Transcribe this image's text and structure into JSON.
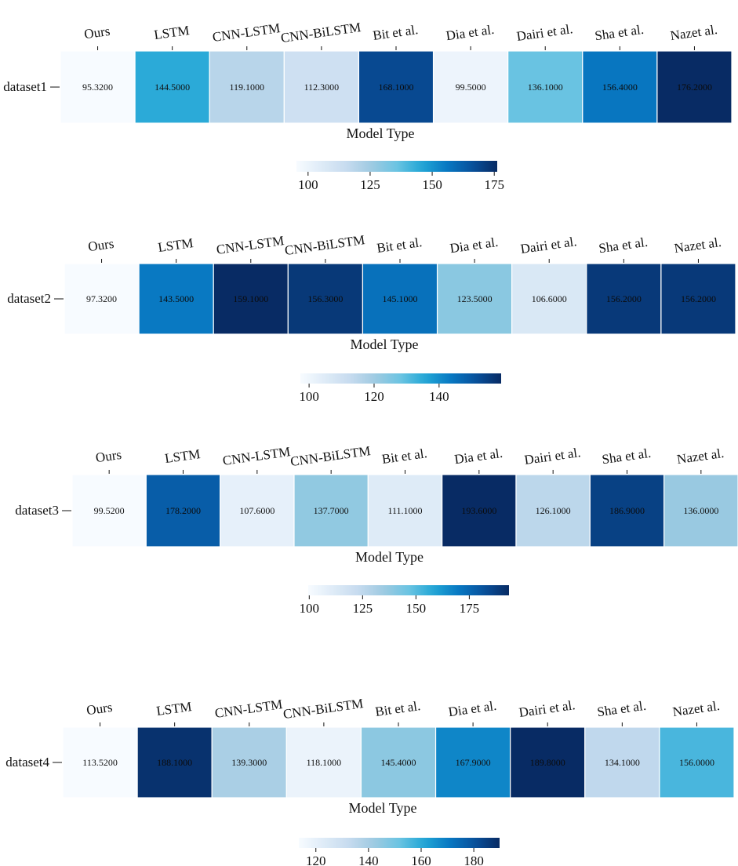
{
  "chart_data": [
    {
      "type": "heatmap",
      "row_label": "dataset1",
      "xlabel": "Model Type",
      "categories": [
        "Ours",
        "LSTM",
        "CNN-LSTM",
        "CNN-BiLSTM",
        "Bit et al.",
        "Dia et al.",
        "Dairi et al.",
        "Sha et al.",
        "Nazet al."
      ],
      "values": [
        95.32,
        144.5,
        119.1,
        112.3,
        168.1,
        99.5,
        136.1,
        156.4,
        176.2
      ],
      "value_labels": [
        "95.3200",
        "144.5000",
        "119.1000",
        "112.3000",
        "168.1000",
        "99.5000",
        "136.1000",
        "156.4000",
        "176.2000"
      ],
      "colorbar": {
        "vmin": 95.32,
        "vmax": 176.2,
        "ticks": [
          100,
          125,
          150,
          175
        ],
        "tick_labels": [
          "100",
          "125",
          "150",
          "175"
        ]
      }
    },
    {
      "type": "heatmap",
      "row_label": "dataset2",
      "xlabel": "Model Type",
      "categories": [
        "Ours",
        "LSTM",
        "CNN-LSTM",
        "CNN-BiLSTM",
        "Bit et al.",
        "Dia et al.",
        "Dairi et al.",
        "Sha et al.",
        "Nazet al."
      ],
      "values": [
        97.32,
        143.5,
        159.1,
        156.3,
        145.1,
        123.5,
        106.6,
        156.2,
        156.2
      ],
      "value_labels": [
        "97.3200",
        "143.5000",
        "159.1000",
        "156.3000",
        "145.1000",
        "123.5000",
        "106.6000",
        "156.2000",
        "156.2000"
      ],
      "colorbar": {
        "vmin": 97.32,
        "vmax": 159.1,
        "ticks": [
          100,
          120,
          140
        ],
        "tick_labels": [
          "100",
          "120",
          "140"
        ]
      }
    },
    {
      "type": "heatmap",
      "row_label": "dataset3",
      "xlabel": "Model Type",
      "categories": [
        "Ours",
        "LSTM",
        "CNN-LSTM",
        "CNN-BiLSTM",
        "Bit et al.",
        "Dia et al.",
        "Dairi et al.",
        "Sha et al.",
        "Nazet al."
      ],
      "values": [
        99.52,
        178.2,
        107.6,
        137.7,
        111.1,
        193.6,
        126.1,
        186.9,
        136.0
      ],
      "value_labels": [
        "99.5200",
        "178.2000",
        "107.6000",
        "137.7000",
        "111.1000",
        "193.6000",
        "126.1000",
        "186.9000",
        "136.0000"
      ],
      "colorbar": {
        "vmin": 99.52,
        "vmax": 193.6,
        "ticks": [
          100,
          125,
          150,
          175
        ],
        "tick_labels": [
          "100",
          "125",
          "150",
          "175"
        ]
      }
    },
    {
      "type": "heatmap",
      "row_label": "dataset4",
      "xlabel": "Model Type",
      "categories": [
        "Ours",
        "LSTM",
        "CNN-LSTM",
        "CNN-BiLSTM",
        "Bit et al.",
        "Dia et al.",
        "Dairi et al.",
        "Sha et al.",
        "Nazet al."
      ],
      "values": [
        113.52,
        188.1,
        139.3,
        118.1,
        145.4,
        167.9,
        189.8,
        134.1,
        156.0
      ],
      "value_labels": [
        "113.5200",
        "188.1000",
        "139.3000",
        "118.1000",
        "145.4000",
        "167.9000",
        "189.8000",
        "134.1000",
        "156.0000"
      ],
      "colorbar": {
        "vmin": 113.52,
        "vmax": 189.8,
        "ticks": [
          120,
          140,
          160,
          180
        ],
        "tick_labels": [
          "120",
          "140",
          "160",
          "180"
        ]
      }
    }
  ]
}
